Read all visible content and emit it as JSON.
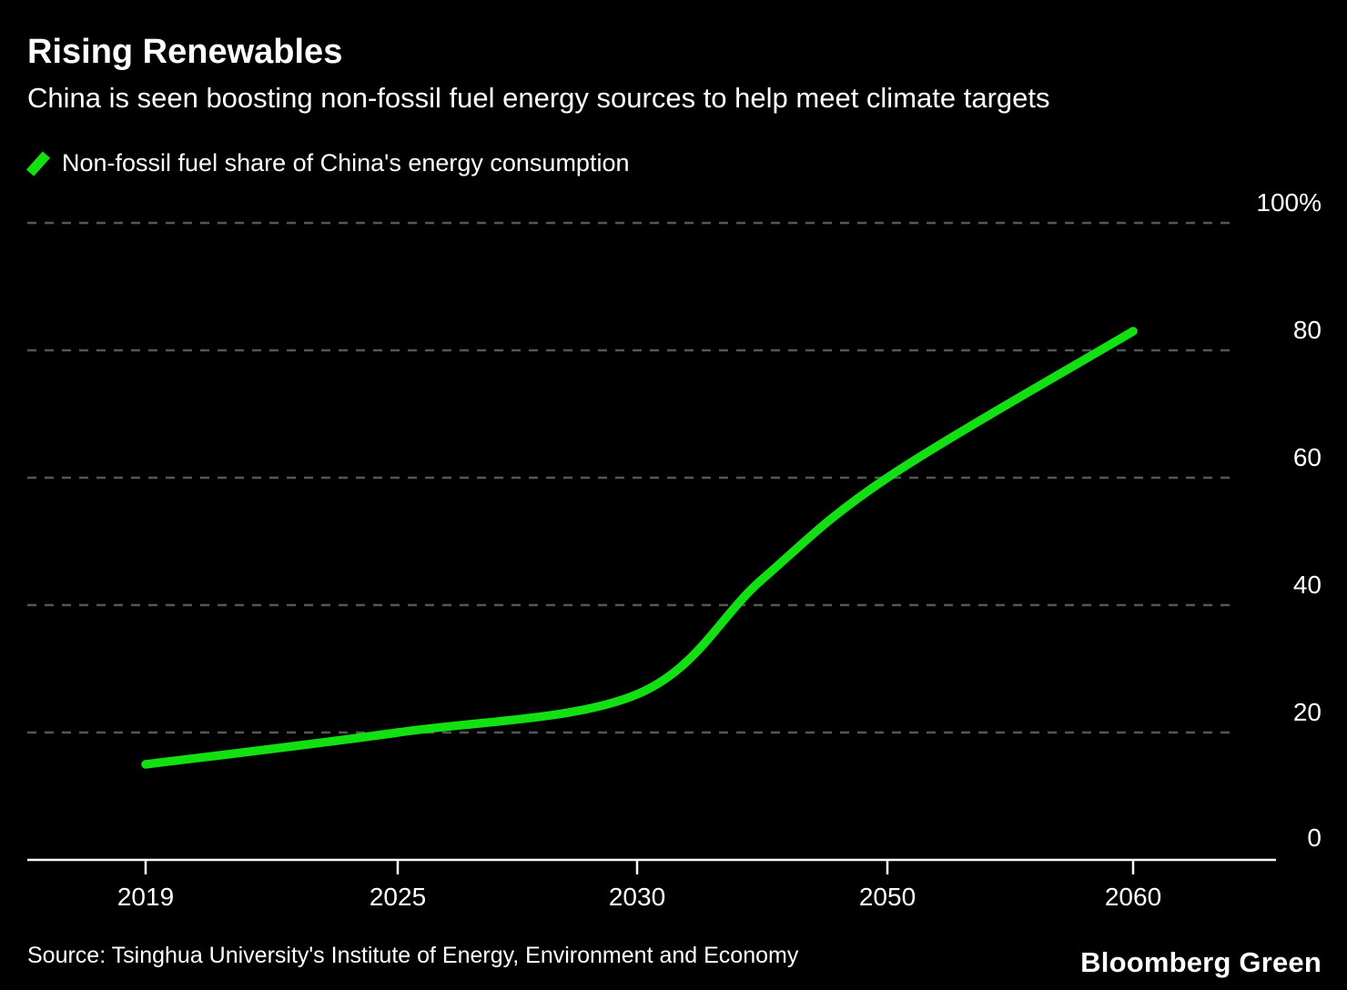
{
  "header": {
    "title": "Rising Renewables",
    "subtitle": "China is seen boosting non-fossil fuel energy sources to help meet climate targets"
  },
  "legend": {
    "label": "Non-fossil fuel share of China's energy consumption",
    "marker_icon": "green-slash-icon"
  },
  "footer": {
    "source": "Source: Tsinghua University's Institute of Energy, Environment and Economy",
    "brand": "Bloomberg Green"
  },
  "colors": {
    "background": "#000000",
    "text": "#ffffff",
    "line": "#12e012",
    "gridline": "#565656",
    "axis": "#ffffff"
  },
  "chart_data": {
    "type": "line",
    "title": "Rising Renewables",
    "subtitle": "China is seen boosting non-fossil fuel energy sources to help meet climate targets",
    "series": [
      {
        "name": "Non-fossil fuel share of China's energy consumption",
        "x": [
          2019,
          2025,
          2030,
          2040,
          2050,
          2060
        ],
        "values": [
          15,
          20,
          26,
          44,
          60,
          83
        ]
      }
    ],
    "x_tick_labels": [
      "2019",
      "2025",
      "2030",
      "2050",
      "2060"
    ],
    "y_tick_labels": [
      "100%",
      "80",
      "60",
      "40",
      "20",
      "0"
    ],
    "y_tick_values": [
      100,
      80,
      60,
      40,
      20,
      0
    ],
    "ylim": [
      0,
      100
    ],
    "grid": "horizontal-dashed",
    "legend_position": "top-left",
    "line_color": "#12e012"
  }
}
